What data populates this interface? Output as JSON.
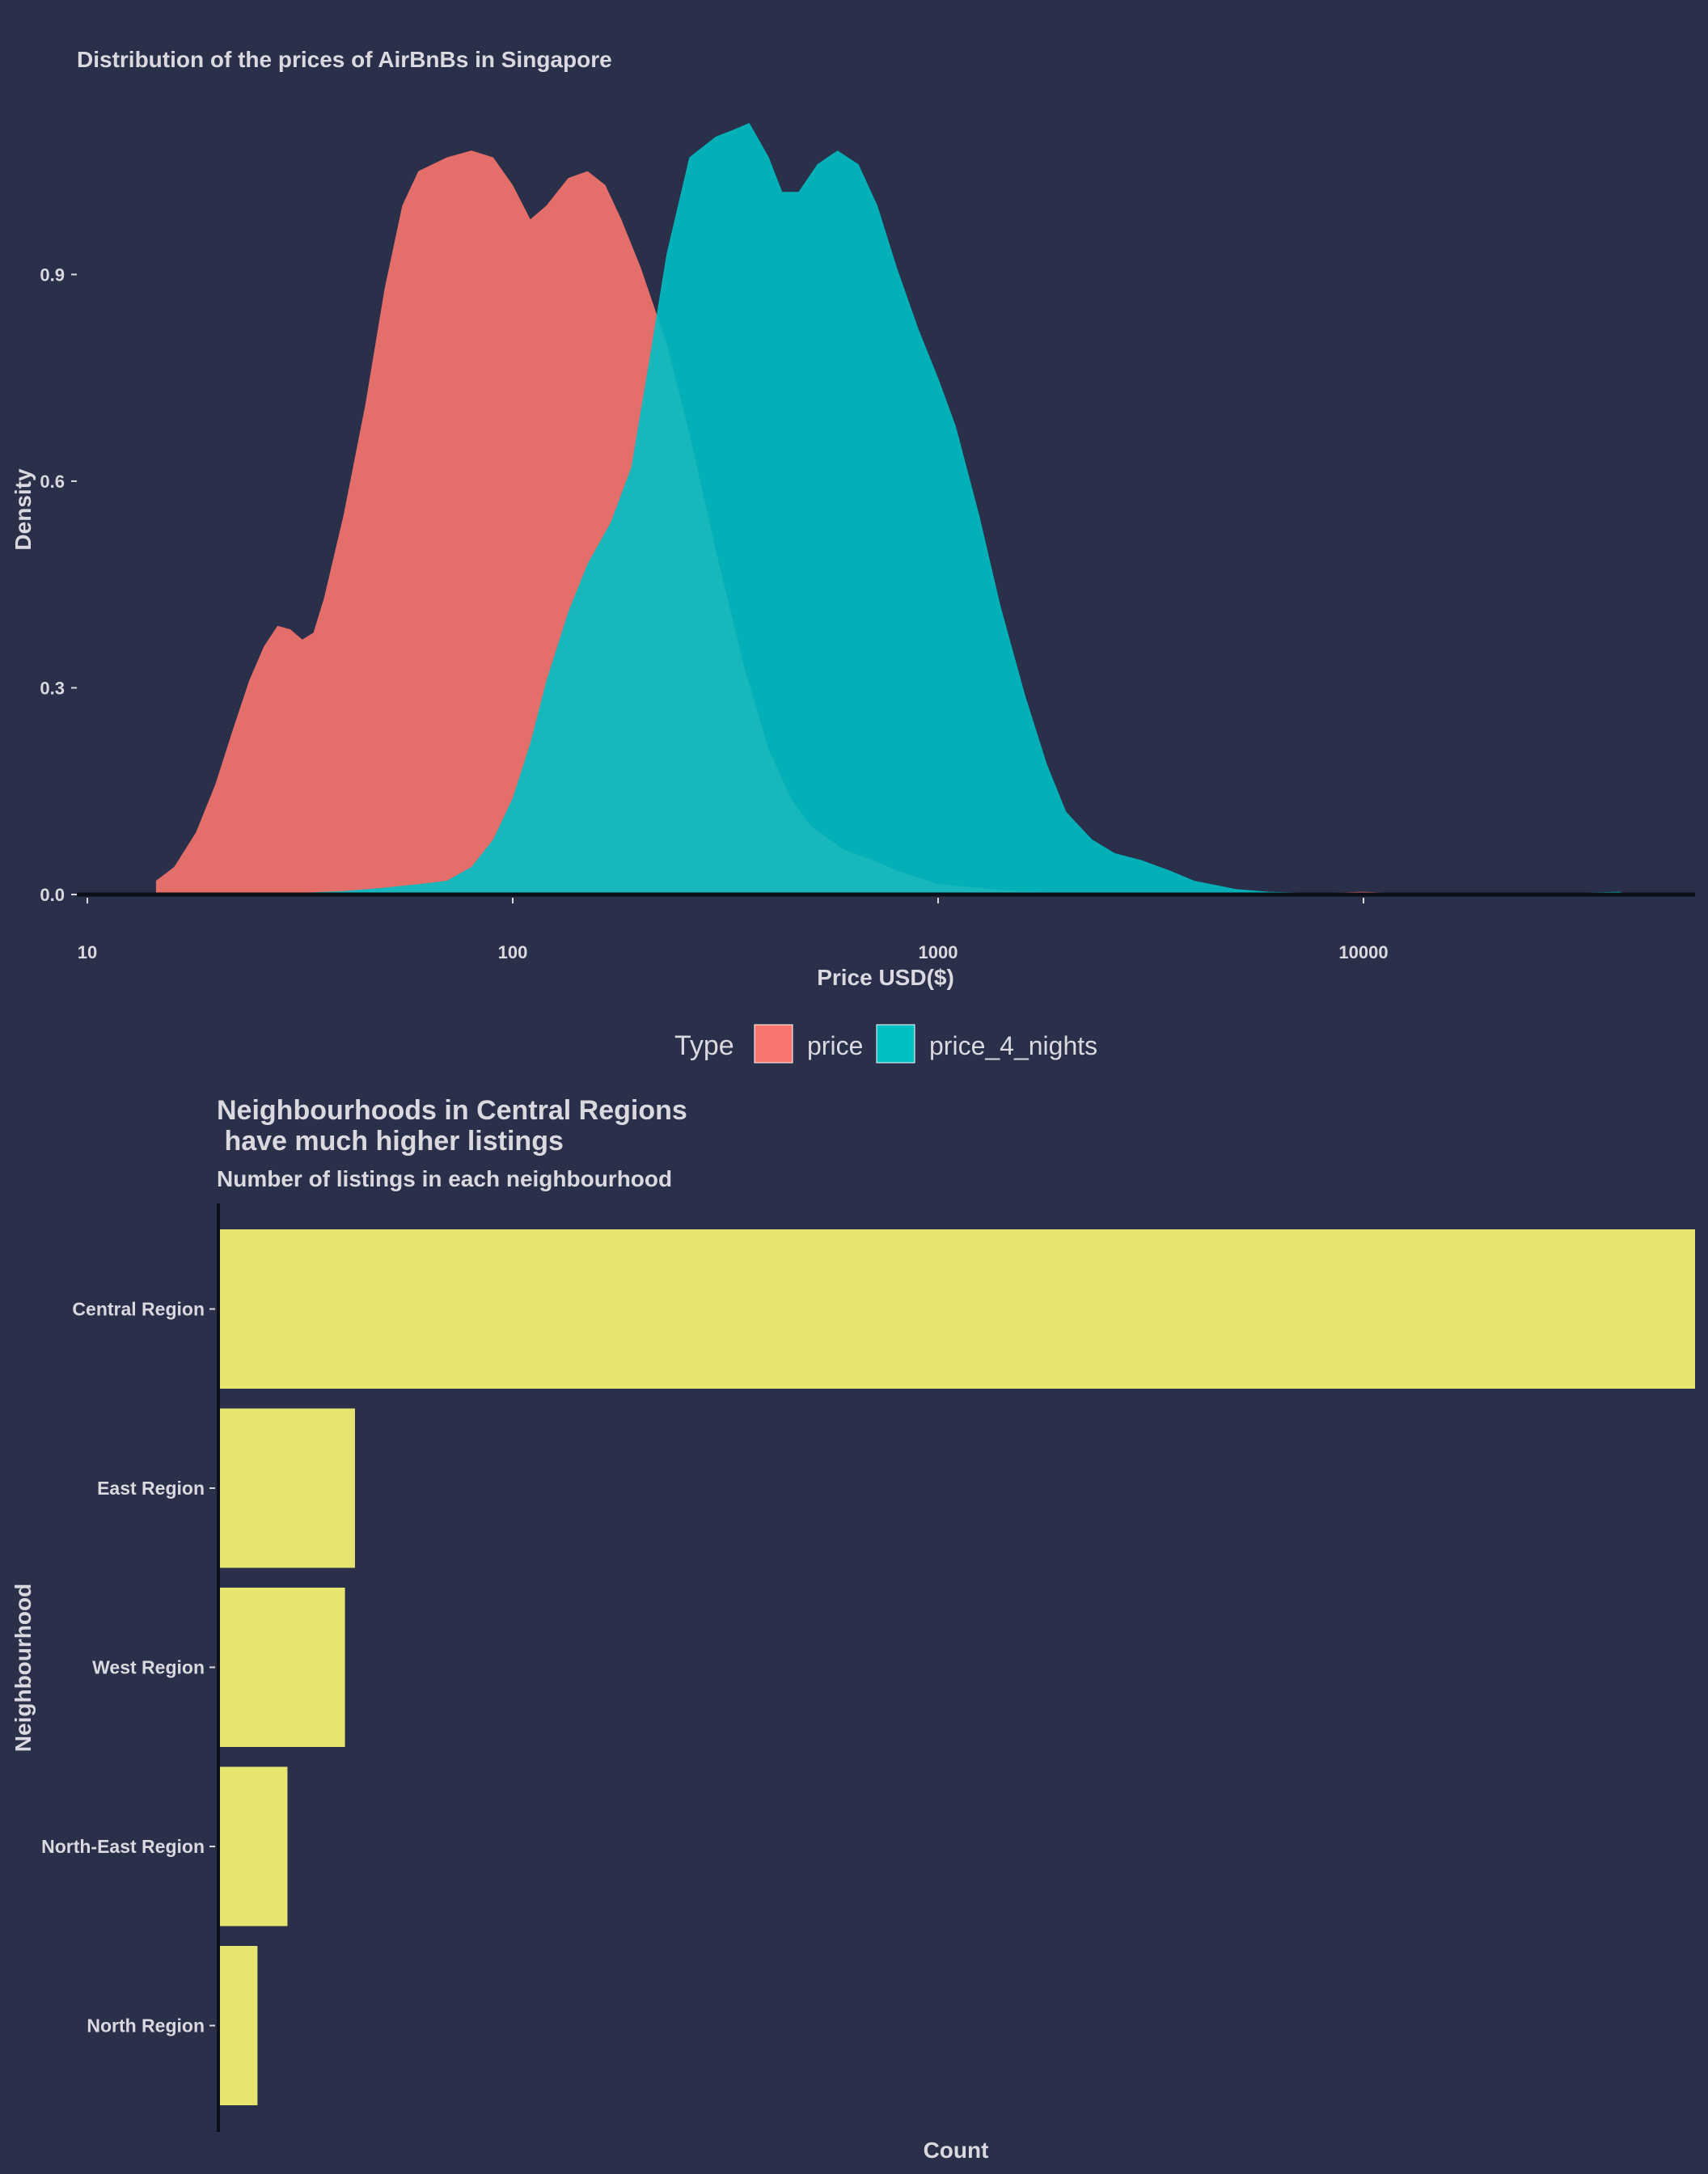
{
  "colors": {
    "background": "#2a2f4a",
    "text": "#d9d9df",
    "price": "#f8766d",
    "price_4_nights": "#00bfc4",
    "bar": "#e5e570",
    "axis": "#0d0f1a"
  },
  "chart_data": [
    {
      "type": "area",
      "title": "Distribution of the prices of AirBnBs in Singapore",
      "xlabel": "Price USD($)",
      "ylabel": "Density",
      "x_scale": "log10",
      "xlim": [
        10,
        55000
      ],
      "ylim": [
        0,
        1.12
      ],
      "x_ticks": [
        10,
        100,
        1000,
        10000
      ],
      "x_tick_labels": [
        "10",
        "100",
        "1000",
        "10000"
      ],
      "y_ticks": [
        0.0,
        0.3,
        0.6,
        0.9
      ],
      "y_tick_labels": [
        "0.0",
        "0.3",
        "0.6",
        "0.9"
      ],
      "grid": false,
      "legend": {
        "title": "Type",
        "position": "bottom",
        "entries": [
          "price",
          "price_4_nights"
        ]
      },
      "series": [
        {
          "name": "price",
          "color": "#f8766d",
          "points": [
            [
              14.5,
              0.02
            ],
            [
              16,
              0.04
            ],
            [
              18,
              0.09
            ],
            [
              20,
              0.16
            ],
            [
              22,
              0.24
            ],
            [
              24,
              0.31
            ],
            [
              26,
              0.36
            ],
            [
              28,
              0.39
            ],
            [
              30,
              0.385
            ],
            [
              32,
              0.37
            ],
            [
              34,
              0.38
            ],
            [
              36,
              0.43
            ],
            [
              40,
              0.55
            ],
            [
              45,
              0.71
            ],
            [
              50,
              0.88
            ],
            [
              55,
              1.0
            ],
            [
              60,
              1.05
            ],
            [
              70,
              1.07
            ],
            [
              80,
              1.08
            ],
            [
              90,
              1.07
            ],
            [
              100,
              1.03
            ],
            [
              110,
              0.98
            ],
            [
              120,
              1.0
            ],
            [
              135,
              1.04
            ],
            [
              150,
              1.05
            ],
            [
              165,
              1.03
            ],
            [
              180,
              0.98
            ],
            [
              200,
              0.91
            ],
            [
              230,
              0.8
            ],
            [
              260,
              0.67
            ],
            [
              300,
              0.5
            ],
            [
              350,
              0.33
            ],
            [
              400,
              0.21
            ],
            [
              450,
              0.14
            ],
            [
              500,
              0.1
            ],
            [
              600,
              0.065
            ],
            [
              700,
              0.05
            ],
            [
              800,
              0.035
            ],
            [
              1000,
              0.015
            ],
            [
              1500,
              0.005
            ],
            [
              2000,
              0.002
            ],
            [
              4000,
              0.001
            ],
            [
              9000,
              0.003
            ],
            [
              10000,
              0.004
            ],
            [
              12000,
              0.002
            ],
            [
              20000,
              0.001
            ],
            [
              40000,
              0.0
            ]
          ]
        },
        {
          "name": "price_4_nights",
          "color": "#00bfc4",
          "points": [
            [
              25,
              0.0
            ],
            [
              40,
              0.005
            ],
            [
              50,
              0.01
            ],
            [
              60,
              0.015
            ],
            [
              70,
              0.02
            ],
            [
              80,
              0.04
            ],
            [
              90,
              0.08
            ],
            [
              100,
              0.14
            ],
            [
              110,
              0.22
            ],
            [
              120,
              0.31
            ],
            [
              135,
              0.41
            ],
            [
              150,
              0.48
            ],
            [
              170,
              0.54
            ],
            [
              190,
              0.62
            ],
            [
              210,
              0.78
            ],
            [
              230,
              0.93
            ],
            [
              260,
              1.07
            ],
            [
              300,
              1.1
            ],
            [
              330,
              1.11
            ],
            [
              360,
              1.12
            ],
            [
              400,
              1.07
            ],
            [
              430,
              1.02
            ],
            [
              470,
              1.02
            ],
            [
              520,
              1.06
            ],
            [
              580,
              1.08
            ],
            [
              650,
              1.06
            ],
            [
              720,
              1.0
            ],
            [
              800,
              0.91
            ],
            [
              900,
              0.82
            ],
            [
              1000,
              0.75
            ],
            [
              1100,
              0.68
            ],
            [
              1250,
              0.55
            ],
            [
              1400,
              0.42
            ],
            [
              1600,
              0.29
            ],
            [
              1800,
              0.19
            ],
            [
              2000,
              0.12
            ],
            [
              2300,
              0.08
            ],
            [
              2600,
              0.06
            ],
            [
              3000,
              0.05
            ],
            [
              3500,
              0.035
            ],
            [
              4000,
              0.02
            ],
            [
              5000,
              0.008
            ],
            [
              6000,
              0.004
            ],
            [
              8000,
              0.002
            ],
            [
              12000,
              0.002
            ],
            [
              14000,
              0.0
            ],
            [
              18000,
              0.0
            ],
            [
              25000,
              0.001
            ],
            [
              40000,
              0.004
            ],
            [
              42000,
              0.0
            ]
          ]
        }
      ]
    },
    {
      "type": "bar",
      "orientation": "horizontal",
      "title": "Neighbourhoods in Central Regions\n have much higher listings",
      "subtitle": "Number of listings in each neighbourhood",
      "xlabel": "Count",
      "ylabel": "Neighbourhood",
      "x_tick_labels": [],
      "grid": false,
      "categories": [
        "Central Region",
        "East Region",
        "West Region",
        "North-East Region",
        "North Region"
      ],
      "values": [
        5900,
        540,
        500,
        270,
        150
      ],
      "xlim": [
        0,
        5900
      ],
      "color": "#e5e570"
    }
  ]
}
